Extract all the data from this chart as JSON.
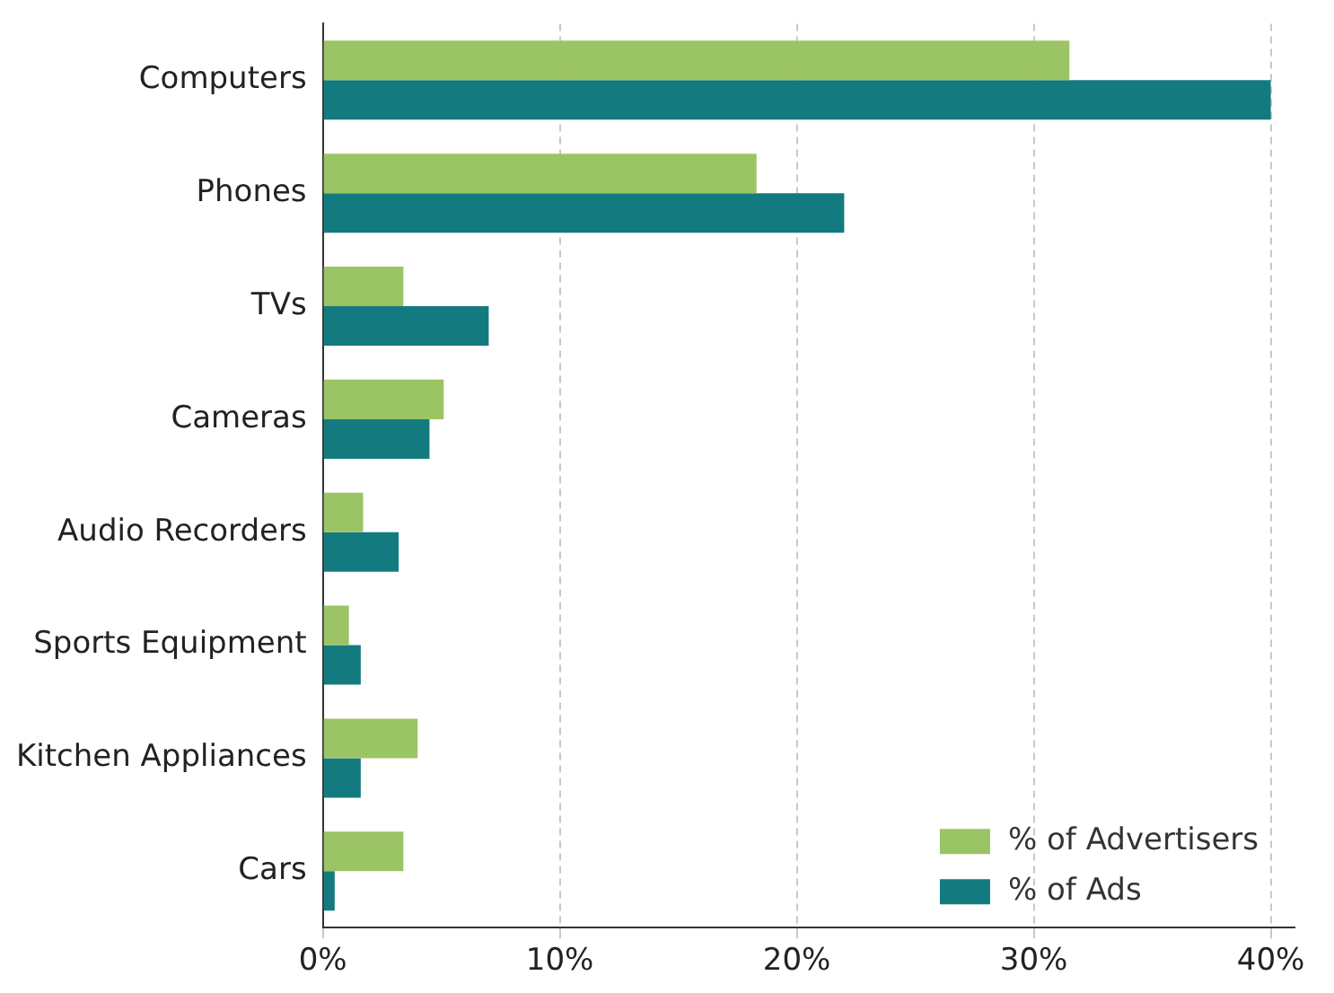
{
  "chart_data": {
    "type": "bar",
    "orientation": "horizontal",
    "categories": [
      "Computers",
      "Phones",
      "TVs",
      "Cameras",
      "Audio Recorders",
      "Sports Equipment",
      "Kitchen Appliances",
      "Cars"
    ],
    "series": [
      {
        "name": "% of Advertisers",
        "color": "#9bc465",
        "values": [
          31.5,
          18.3,
          3.4,
          5.1,
          1.7,
          1.1,
          4.0,
          3.4
        ]
      },
      {
        "name": "% of Ads",
        "color": "#137a7f",
        "values": [
          40,
          22.0,
          7.0,
          4.5,
          3.2,
          1.6,
          1.6,
          0.5
        ]
      }
    ],
    "xlim": [
      0,
      41
    ],
    "xticks": [
      {
        "value": 0,
        "label": "0%"
      },
      {
        "value": 10,
        "label": "10%"
      },
      {
        "value": 20,
        "label": "20%"
      },
      {
        "value": 30,
        "label": "30%"
      },
      {
        "value": 40,
        "label": "40%"
      }
    ],
    "grid": "x",
    "legend": "bottom right"
  }
}
